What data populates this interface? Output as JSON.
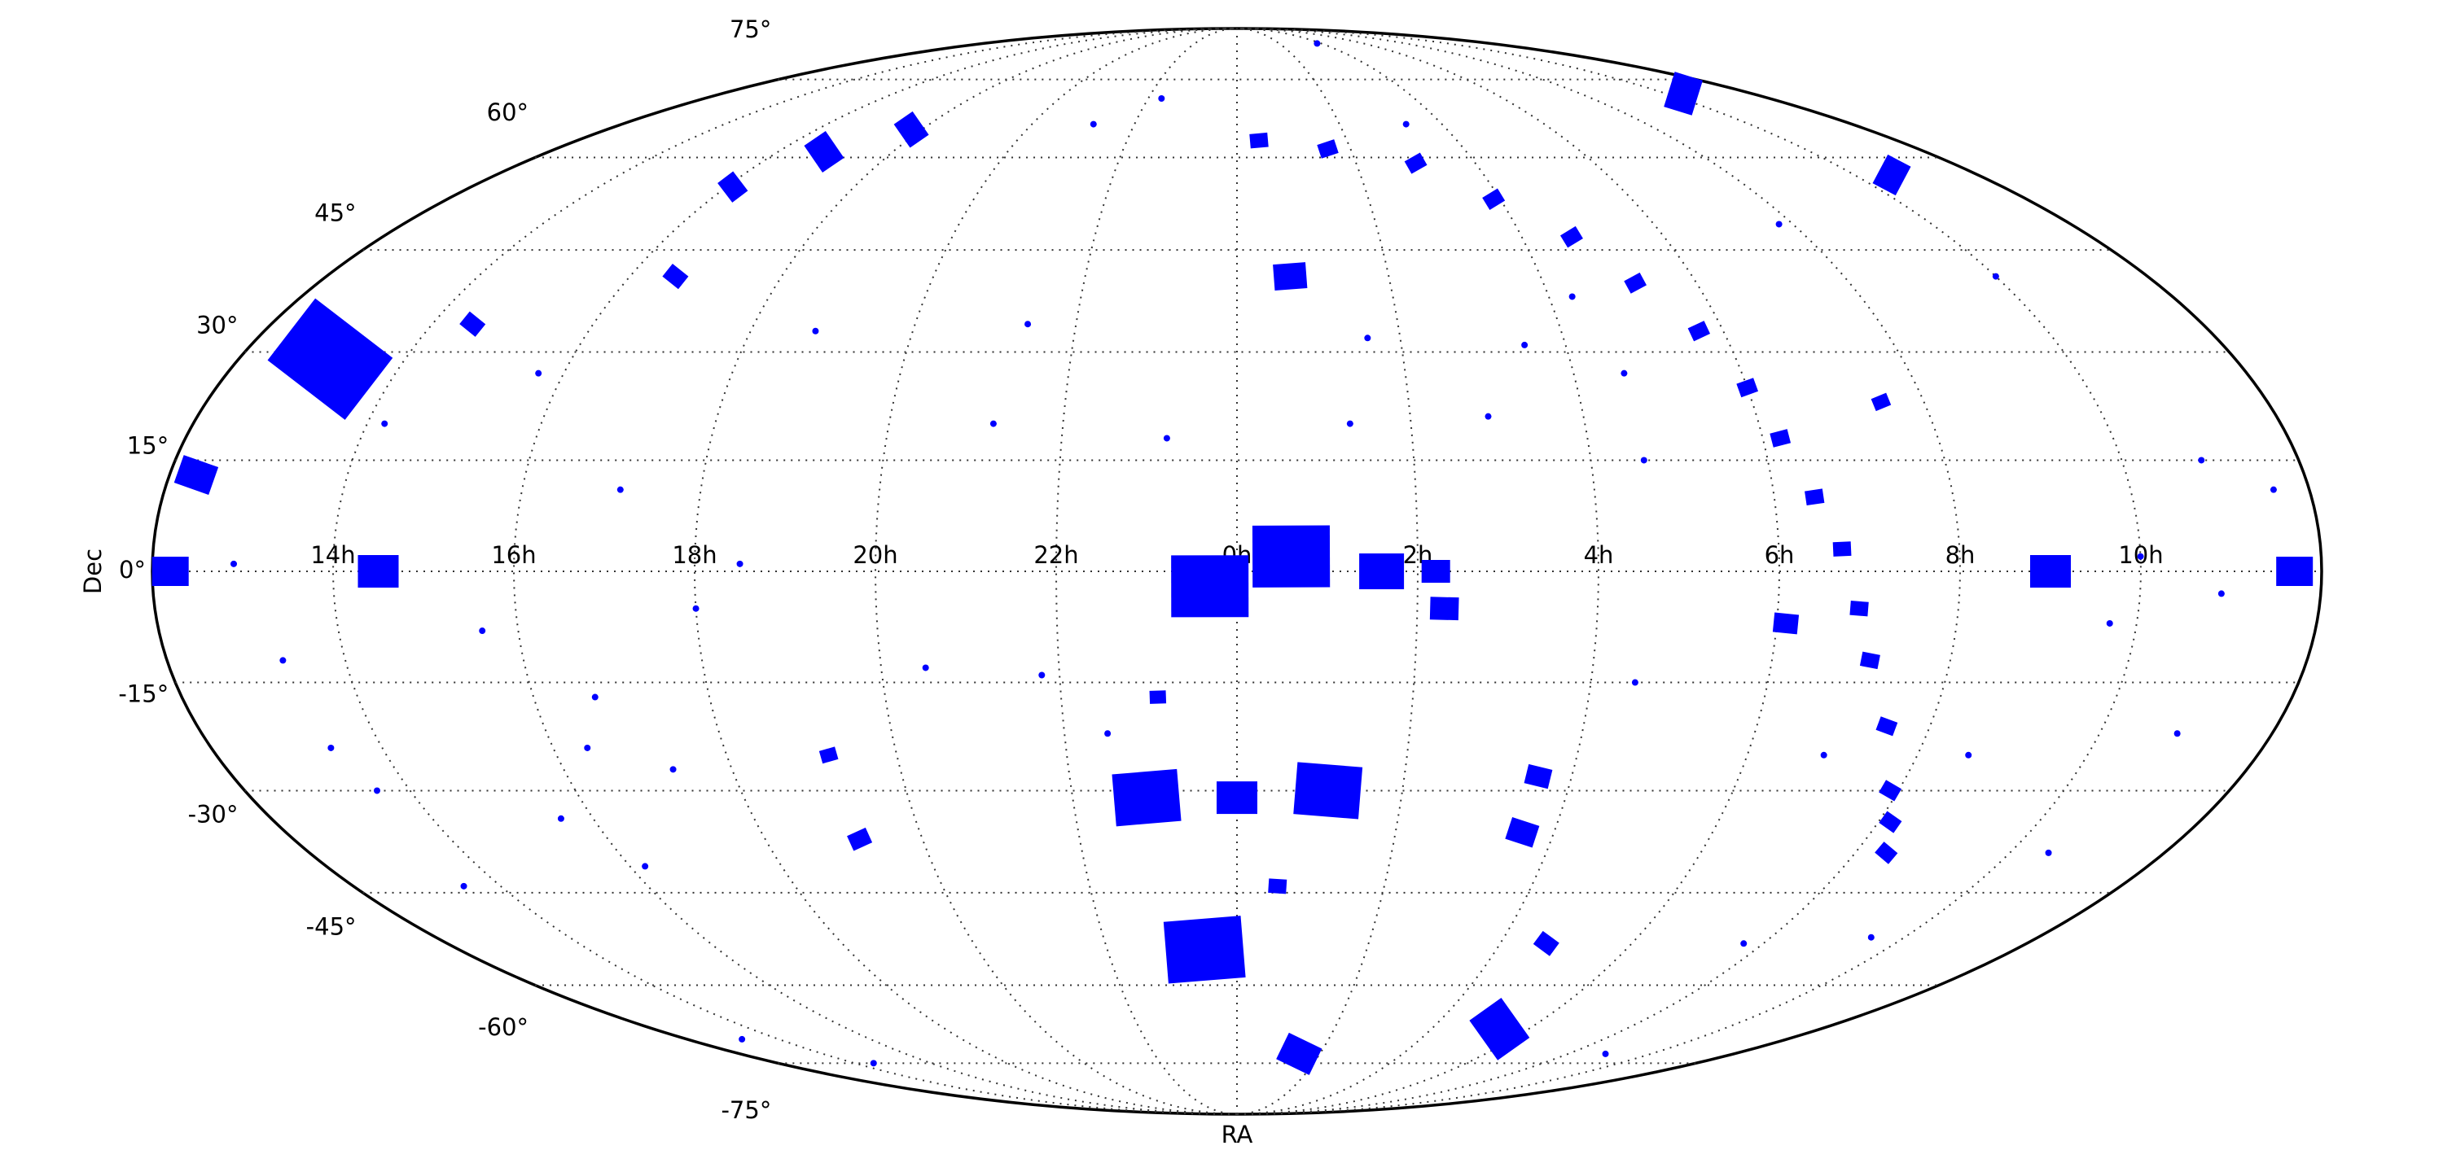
{
  "chart_data": {
    "type": "scatter",
    "projection": "mollweide",
    "xlabel": "RA",
    "ylabel": "Dec",
    "grid": true,
    "xlim": [
      -12,
      12
    ],
    "xticks": [
      {
        "value": -10,
        "label": "14h"
      },
      {
        "value": -8,
        "label": "16h"
      },
      {
        "value": -6,
        "label": "18h"
      },
      {
        "value": -4,
        "label": "20h"
      },
      {
        "value": -2,
        "label": "22h"
      },
      {
        "value": 0,
        "label": "0h"
      },
      {
        "value": 2,
        "label": "2h"
      },
      {
        "value": 4,
        "label": "4h"
      },
      {
        "value": 6,
        "label": "6h"
      },
      {
        "value": 8,
        "label": "8h"
      },
      {
        "value": 10,
        "label": "10h"
      }
    ],
    "ylim": [
      -90,
      90
    ],
    "yticks": [
      {
        "value": -75,
        "label": "-75°"
      },
      {
        "value": -60,
        "label": "-60°"
      },
      {
        "value": -45,
        "label": "-45°"
      },
      {
        "value": -30,
        "label": "-30°"
      },
      {
        "value": -15,
        "label": "-15°"
      },
      {
        "value": 0,
        "label": "0°"
      },
      {
        "value": 15,
        "label": "15°"
      },
      {
        "value": 30,
        "label": "30°"
      },
      {
        "value": 45,
        "label": "45°"
      },
      {
        "value": 60,
        "label": "60°"
      },
      {
        "value": 75,
        "label": "75°"
      }
    ],
    "series": [
      {
        "color": "#0000ff",
        "x": [
          -0.3,
          0.6,
          1.6,
          2.2,
          -1.1,
          0,
          1.1,
          -0.5,
          1.5,
          5.4,
          -10.9,
          -11.7,
          -9.5,
          -11.8,
          9.0,
          11.7,
          0.7,
          3.6,
          3.6,
          2.3,
          10.6,
          10.4,
          -7.2,
          -6.2,
          -7.9,
          -7.4,
          -9.5,
          -0.9,
          -4.8,
          -4.8,
          4.7,
          7.5,
          6.1,
          0.55,
          0.4,
          1.6,
          3.0,
          3.9,
          4.7,
          5.2,
          5.7,
          6.0,
          6.2,
          6.45,
          6.7,
          6.9,
          7.1,
          7.5,
          7.9,
          8.15,
          8.4,
          -6.9,
          -8.4,
          -10.7,
          -0.8,
          1.6,
          10.0,
          10.9,
          10.9,
          10.5,
          6.9,
          4.5,
          -1.5,
          -2.2,
          -3.5,
          -2.6,
          -2.8,
          -5.2,
          -8.3,
          -9.8,
          -11.1,
          -10.6,
          -10.4,
          -10.5,
          -7.3,
          -7.6,
          -6.7,
          -8.4,
          -7.8,
          -6.0,
          -5.5,
          1.3,
          2.9,
          3.5,
          4.6,
          4.6,
          4.3,
          -1.7,
          -2.8,
          3.3,
          3.8,
          7.7,
          8.9,
          -9.5,
          -10.8,
          9.5,
          8.6,
          9.7,
          10.9,
          10.0,
          7.8,
          11.6
        ],
        "y": [
          -2,
          2,
          0,
          0,
          -31,
          -31,
          -30,
          -54,
          -73,
          -68,
          29,
          13,
          0,
          0,
          0,
          0,
          41,
          -28,
          -36,
          -5,
          57,
          72,
          61,
          65,
          55,
          41,
          34,
          -17,
          -25,
          -37,
          -53,
          23,
          -7,
          -44,
          63,
          61.5,
          59,
          53,
          47,
          40,
          33,
          25,
          18,
          10,
          3,
          -5,
          -12,
          -21,
          -30,
          -34.5,
          -39,
          11,
          -8,
          -12,
          18,
          32,
          2,
          -3,
          -22,
          -39,
          -25,
          -15,
          -22,
          -14,
          -13,
          34,
          20,
          33,
          27,
          20,
          1,
          -24,
          -30,
          -44,
          -17,
          -24,
          -27,
          -34,
          -41,
          -5,
          1,
          20,
          21,
          31,
          27,
          15,
          38,
          71,
          66,
          66,
          84,
          -53,
          -73,
          -75,
          -70,
          -52,
          -25,
          -7,
          15,
          41,
          49,
          11
        ],
        "sizes": [
          95,
          95,
          55,
          35,
          80,
          50,
          80,
          95,
          45,
          60,
          120,
          45,
          50,
          45,
          50,
          45,
          40,
          30,
          35,
          35,
          40,
          45,
          40,
          35,
          30,
          25,
          25,
          20,
          20,
          25,
          25,
          20,
          30,
          22,
          22,
          22,
          22,
          22,
          22,
          22,
          22,
          22,
          22,
          22,
          22,
          22,
          22,
          22,
          22,
          22,
          22,
          8,
          8,
          8,
          8,
          8,
          8,
          8,
          8,
          8,
          8,
          8,
          8,
          8,
          8,
          8,
          8,
          8,
          8,
          8,
          8,
          8,
          8,
          8,
          8,
          8,
          8,
          8,
          8,
          8,
          8,
          8,
          8,
          8,
          8,
          8,
          8,
          8,
          8,
          8,
          8,
          8,
          8,
          8,
          8,
          8,
          8,
          8,
          8,
          8,
          8,
          8
        ]
      }
    ]
  }
}
